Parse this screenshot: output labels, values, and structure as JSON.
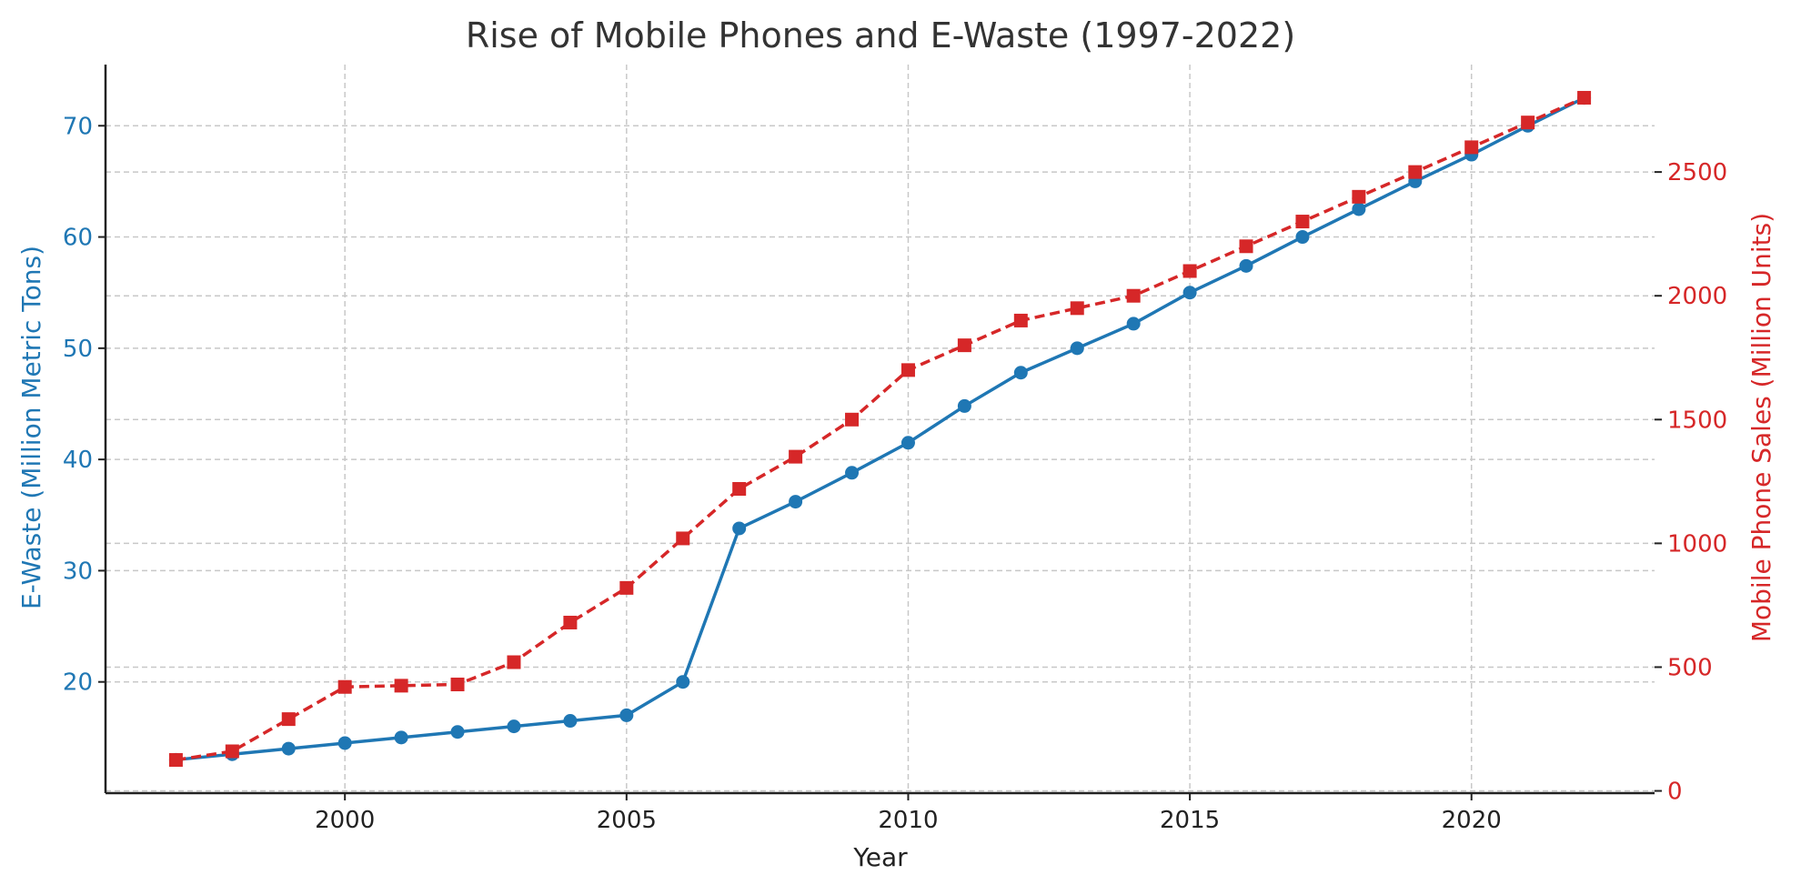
{
  "chart_data": {
    "type": "line",
    "title": "Rise of Mobile Phones and E-Waste (1997-2022)",
    "xlabel": "Year",
    "ylabel_left": "E-Waste (Million Metric Tons)",
    "ylabel_right": "Mobile Phone Sales (Million Units)",
    "x": [
      1997,
      1998,
      1999,
      2000,
      2001,
      2002,
      2003,
      2004,
      2005,
      2006,
      2007,
      2008,
      2009,
      2010,
      2011,
      2012,
      2013,
      2014,
      2015,
      2016,
      2017,
      2018,
      2019,
      2020,
      2021,
      2022
    ],
    "xlim": [
      1995.75,
      2023.25
    ],
    "xticks": [
      2000,
      2005,
      2010,
      2015,
      2020
    ],
    "ylim_left": [
      10,
      75.5
    ],
    "yticks_left": [
      20,
      30,
      40,
      50,
      60,
      70
    ],
    "ylim_right": [
      -9,
      2934
    ],
    "yticks_right": [
      0,
      500,
      1000,
      1500,
      2000,
      2500
    ],
    "grid": true,
    "series": [
      {
        "axis": "left",
        "color": "#1f77b4",
        "marker": "circle",
        "linestyle": "solid",
        "values": [
          13.0,
          13.5,
          14.0,
          14.5,
          15.0,
          15.5,
          16.0,
          16.5,
          17.0,
          20.0,
          33.8,
          36.2,
          38.8,
          41.5,
          44.8,
          47.8,
          50.0,
          52.2,
          55.0,
          57.4,
          60.0,
          62.5,
          65.0,
          67.4,
          70.0,
          72.5
        ]
      },
      {
        "axis": "right",
        "color": "#d62728",
        "marker": "square",
        "linestyle": "dashed",
        "values": [
          125,
          160,
          290,
          420,
          425,
          430,
          520,
          680,
          820,
          1020,
          1220,
          1350,
          1500,
          1700,
          1800,
          1900,
          1950,
          2000,
          2100,
          2200,
          2300,
          2400,
          2500,
          2600,
          2700,
          2800
        ]
      }
    ]
  }
}
